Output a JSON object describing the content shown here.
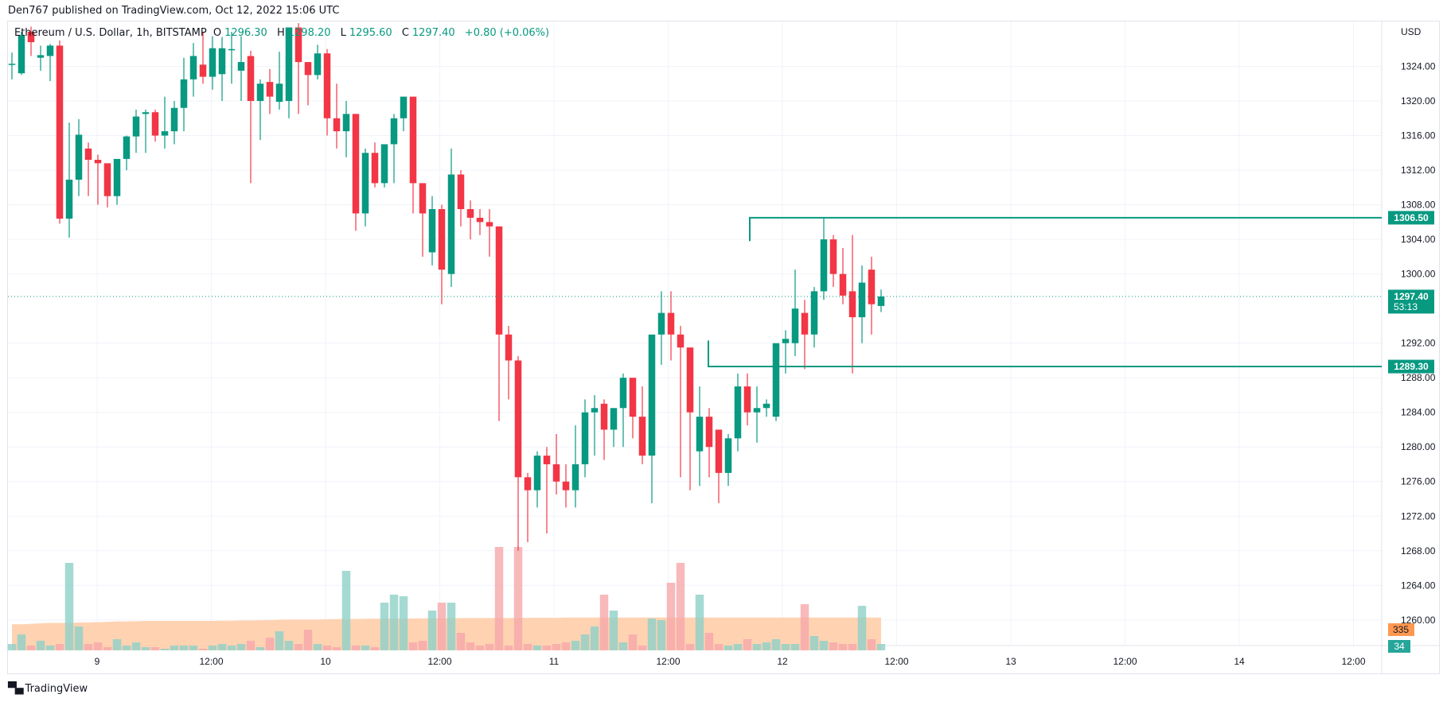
{
  "header": {
    "published": "Den767 published on TradingView.com, Oct 12, 2022 15:06 UTC"
  },
  "legend": {
    "symbol": "Ethereum / U.S. Dollar, 1h, BITSTAMP",
    "o_label": "O",
    "o": "1296.30",
    "h_label": "H",
    "h": "1298.20",
    "l_label": "L",
    "l": "1295.60",
    "c_label": "C",
    "c": "1297.40",
    "change": "+0.80 (+0.06%)"
  },
  "price_axis": {
    "currency": "USD",
    "ticks": [
      "1324.00",
      "1320.00",
      "1316.00",
      "1312.00",
      "1308.00",
      "1304.00",
      "1300.00",
      "1292.00",
      "1288.00",
      "1284.00",
      "1280.00",
      "1276.00",
      "1272.00",
      "1268.00",
      "1264.00",
      "1260.00"
    ],
    "last_price": "1297.40",
    "countdown": "53:13",
    "level_high": "1306.50",
    "level_low": "1289.30",
    "volume_ma": "335",
    "volume": "34"
  },
  "time_axis": {
    "labels": [
      "9",
      "12:00",
      "10",
      "12:00",
      "11",
      "12:00",
      "12",
      "12:00",
      "13",
      "12:00",
      "14",
      "12:00"
    ]
  },
  "colors": {
    "up": "#089981",
    "down": "#f23645",
    "vol_up": "#8fd1c8",
    "vol_down": "#f6a7aa",
    "vol_ma_fill": "#ffcba4",
    "grid": "#f0f3fa",
    "label_bg": "#089981",
    "vol_ma_label": "#ff9850"
  },
  "footer": {
    "brand": "TradingView"
  },
  "chart_data": {
    "type": "candlestick",
    "title": "Ethereum / U.S. Dollar, 1h, BITSTAMP",
    "ylabel": "USD",
    "ylim": [
      1258,
      1328
    ],
    "x_labels": [
      "9",
      "12:00",
      "10",
      "12:00",
      "11",
      "12:00",
      "12",
      "12:00",
      "13",
      "12:00",
      "14",
      "12:00"
    ],
    "horizontal_levels": [
      1306.5,
      1289.3
    ],
    "last_price": 1297.4,
    "candles": [
      [
        1324.3,
        1325.6,
        1322.5,
        1324.3
      ],
      [
        1323.2,
        1328.0,
        1323.0,
        1327.6
      ],
      [
        1328.0,
        1328.6,
        1325.2,
        1326.8
      ],
      [
        1325.0,
        1326.4,
        1323.5,
        1325.3
      ],
      [
        1325.2,
        1326.6,
        1322.3,
        1326.4
      ],
      [
        1326.4,
        1327.0,
        1305.8,
        1306.4
      ],
      [
        1306.4,
        1317.5,
        1304.2,
        1310.9
      ],
      [
        1310.9,
        1317.9,
        1309.0,
        1316.1
      ],
      [
        1314.5,
        1315.2,
        1309.0,
        1313.2
      ],
      [
        1313.2,
        1313.8,
        1308.0,
        1312.8
      ],
      [
        1312.8,
        1312.5,
        1307.7,
        1309.0
      ],
      [
        1309.0,
        1312.8,
        1308.0,
        1313.3
      ],
      [
        1313.3,
        1316.0,
        1312.0,
        1315.9
      ],
      [
        1315.9,
        1319.0,
        1314.0,
        1318.2
      ],
      [
        1318.5,
        1319.0,
        1314.0,
        1318.7
      ],
      [
        1318.7,
        1319.0,
        1315.3,
        1316.0
      ],
      [
        1316.0,
        1320.5,
        1314.5,
        1316.5
      ],
      [
        1316.5,
        1320.0,
        1315.0,
        1319.2
      ],
      [
        1319.2,
        1325.0,
        1316.5,
        1322.5
      ],
      [
        1322.5,
        1326.7,
        1320.5,
        1325.2
      ],
      [
        1324.2,
        1328.0,
        1322.0,
        1322.8
      ],
      [
        1322.8,
        1327.5,
        1321.3,
        1326.1
      ],
      [
        1323.1,
        1327.4,
        1320.0,
        1326.1
      ],
      [
        1326.0,
        1328.0,
        1322.0,
        1326.0
      ],
      [
        1323.5,
        1327.5,
        1320.0,
        1324.5
      ],
      [
        1325.2,
        1325.8,
        1310.5,
        1320.0
      ],
      [
        1320.0,
        1322.5,
        1315.5,
        1322.0
      ],
      [
        1322.2,
        1323.7,
        1318.5,
        1320.5
      ],
      [
        1319.9,
        1325.7,
        1319.0,
        1322.0
      ],
      [
        1320.0,
        1328.0,
        1318.0,
        1328.5
      ],
      [
        1328.5,
        1329.0,
        1318.5,
        1324.5
      ],
      [
        1324.5,
        1324.0,
        1319.5,
        1323.0
      ],
      [
        1323.0,
        1326.5,
        1322.5,
        1325.5
      ],
      [
        1325.5,
        1326.0,
        1316.0,
        1318.0
      ],
      [
        1318.0,
        1322.0,
        1314.5,
        1316.5
      ],
      [
        1316.5,
        1320.0,
        1313.5,
        1318.5
      ],
      [
        1318.5,
        1318.5,
        1305.0,
        1307.0
      ],
      [
        1307.0,
        1314.5,
        1305.5,
        1314.0
      ],
      [
        1314.0,
        1315.2,
        1310.0,
        1310.5
      ],
      [
        1310.5,
        1314.5,
        1310.0,
        1315.0
      ],
      [
        1315.0,
        1318.5,
        1310.5,
        1318.0
      ],
      [
        1318.0,
        1320.5,
        1316.5,
        1320.5
      ],
      [
        1320.5,
        1320.0,
        1307.0,
        1310.5
      ],
      [
        1310.5,
        1310.0,
        1302.0,
        1307.0
      ],
      [
        1302.5,
        1309.0,
        1301.0,
        1307.5
      ],
      [
        1307.5,
        1308.0,
        1296.5,
        1300.5
      ],
      [
        1300.0,
        1314.5,
        1298.5,
        1311.5
      ],
      [
        1311.5,
        1312.0,
        1305.5,
        1307.5
      ],
      [
        1307.5,
        1308.5,
        1304.0,
        1306.5
      ],
      [
        1306.5,
        1307.5,
        1304.5,
        1306.0
      ],
      [
        1306.0,
        1307.5,
        1302.0,
        1305.5
      ],
      [
        1305.5,
        1305.5,
        1283.0,
        1293.0
      ],
      [
        1293.0,
        1294.0,
        1285.5,
        1290.0
      ],
      [
        1290.0,
        1290.5,
        1268.0,
        1276.5
      ],
      [
        1276.5,
        1277.0,
        1269.0,
        1275.0
      ],
      [
        1275.0,
        1279.5,
        1273.0,
        1279.0
      ],
      [
        1279.0,
        1280.0,
        1270.0,
        1278.0
      ],
      [
        1278.0,
        1281.5,
        1274.5,
        1276.0
      ],
      [
        1276.0,
        1278.0,
        1273.0,
        1275.0
      ],
      [
        1275.0,
        1282.5,
        1273.0,
        1278.0
      ],
      [
        1278.0,
        1285.5,
        1276.5,
        1284.0
      ],
      [
        1284.0,
        1286.0,
        1279.0,
        1284.5
      ],
      [
        1285.0,
        1285.5,
        1278.5,
        1282.0
      ],
      [
        1282.0,
        1284.5,
        1280.0,
        1284.5
      ],
      [
        1284.5,
        1288.5,
        1280.0,
        1288.0
      ],
      [
        1288.0,
        1287.5,
        1281.0,
        1283.5
      ],
      [
        1283.5,
        1287.0,
        1278.0,
        1279.0
      ],
      [
        1279.0,
        1289.0,
        1273.5,
        1293.0
      ],
      [
        1293.0,
        1298.0,
        1289.5,
        1295.5
      ],
      [
        1295.5,
        1298.0,
        1290.0,
        1293.0
      ],
      [
        1293.0,
        1294.0,
        1276.5,
        1291.5
      ],
      [
        1291.5,
        1290.0,
        1275.0,
        1284.0
      ],
      [
        1279.5,
        1287.0,
        1275.5,
        1283.5
      ],
      [
        1283.5,
        1284.5,
        1276.5,
        1280.0
      ],
      [
        1282.0,
        1282.0,
        1273.5,
        1277.0
      ],
      [
        1277.0,
        1281.5,
        1275.5,
        1281.0
      ],
      [
        1281.0,
        1288.5,
        1279.5,
        1287.0
      ],
      [
        1287.0,
        1288.5,
        1282.5,
        1284.0
      ],
      [
        1284.0,
        1287.0,
        1280.5,
        1284.5
      ],
      [
        1284.5,
        1285.5,
        1283.5,
        1285.0
      ],
      [
        1283.5,
        1287.0,
        1283.0,
        1292.0
      ],
      [
        1292.0,
        1293.5,
        1288.5,
        1292.5
      ],
      [
        1292.0,
        1300.5,
        1290.5,
        1296.0
      ],
      [
        1295.5,
        1297.0,
        1289.0,
        1293.0
      ],
      [
        1293.0,
        1298.5,
        1291.5,
        1298.0
      ],
      [
        1298.0,
        1306.5,
        1297.0,
        1304.0
      ],
      [
        1304.0,
        1304.5,
        1298.5,
        1300.0
      ],
      [
        1300.0,
        1303.0,
        1296.5,
        1297.5
      ],
      [
        1298.0,
        1304.5,
        1288.5,
        1295.0
      ],
      [
        1295.0,
        1301.0,
        1292.0,
        1299.0
      ],
      [
        1300.5,
        1302.0,
        1293.0,
        1296.5
      ],
      [
        1296.3,
        1298.2,
        1295.6,
        1297.4
      ]
    ]
  }
}
